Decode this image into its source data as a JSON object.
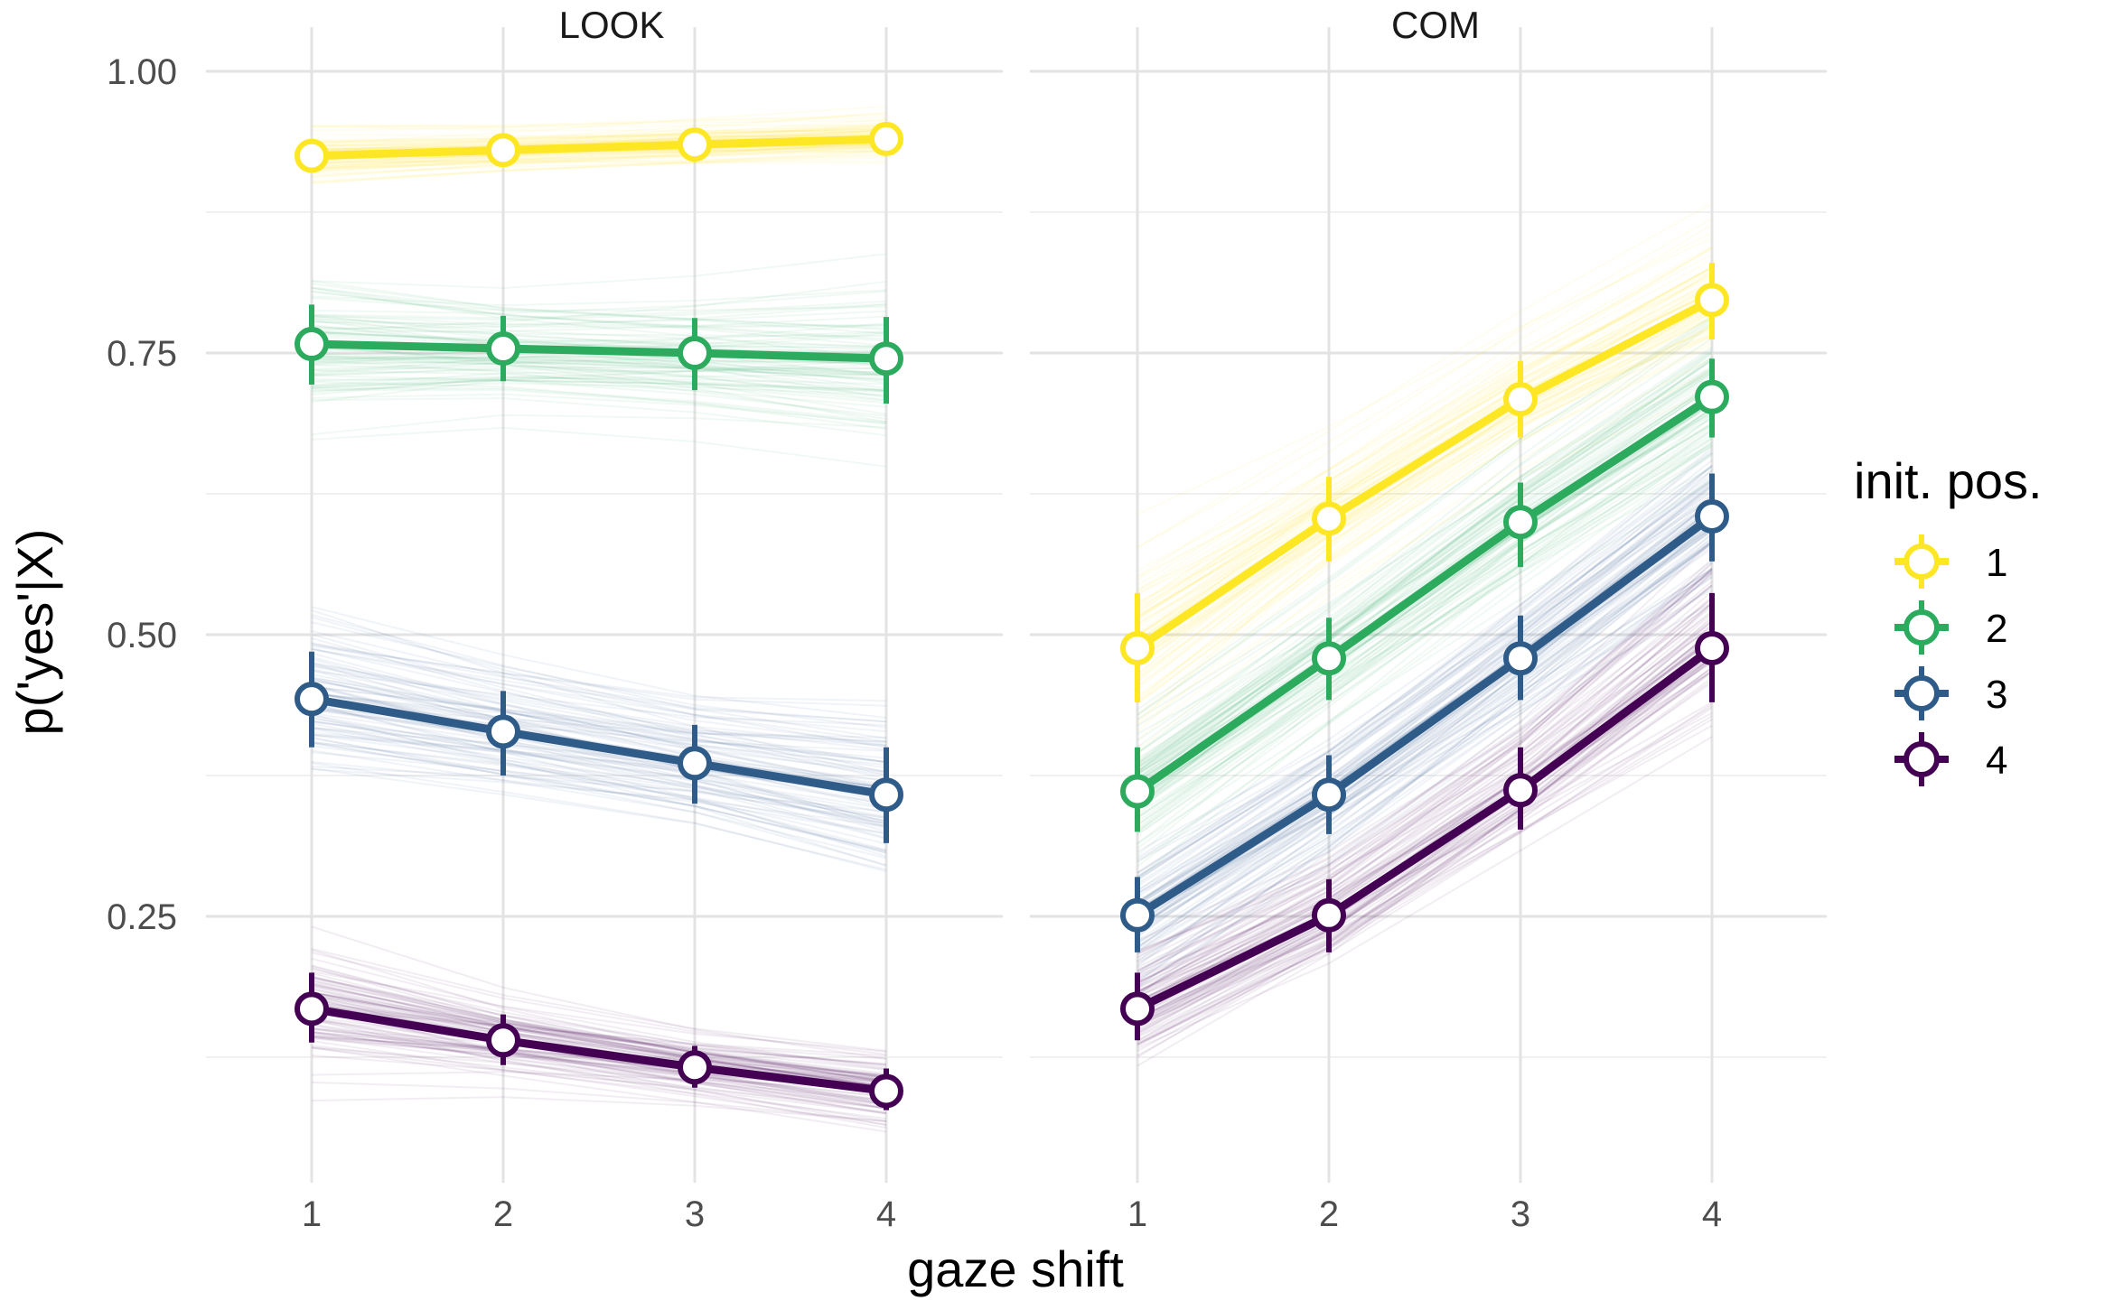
{
  "chart_data": {
    "type": "line",
    "title": "",
    "xlabel": "gaze shift",
    "ylabel": "p('yes'|X)",
    "x": [
      1,
      2,
      3,
      4
    ],
    "x_ticks": [
      "1",
      "2",
      "3",
      "4"
    ],
    "ylim": [
      0.05,
      1.0
    ],
    "y_ticks": [
      0.25,
      0.5,
      0.75,
      1.0
    ],
    "y_tick_labels": [
      "0.25",
      "0.50",
      "0.75",
      "1.00"
    ],
    "grid": true,
    "legend": {
      "title": "init. pos.",
      "position": "right",
      "entries": [
        "1",
        "2",
        "3",
        "4"
      ]
    },
    "colors": {
      "1": "#FDE725",
      "2": "#2CAA5E",
      "3": "#2E5B88",
      "4": "#440154"
    },
    "facets": [
      {
        "title": "LOOK",
        "series": [
          {
            "name": "1",
            "values": [
              0.925,
              0.93,
              0.935,
              0.94
            ],
            "lower": [
              0.912,
              0.918,
              0.922,
              0.926
            ],
            "upper": [
              0.938,
              0.942,
              0.948,
              0.952
            ]
          },
          {
            "name": "2",
            "values": [
              0.758,
              0.754,
              0.75,
              0.745
            ],
            "lower": [
              0.722,
              0.725,
              0.717,
              0.705
            ],
            "upper": [
              0.793,
              0.783,
              0.781,
              0.782
            ]
          },
          {
            "name": "3",
            "values": [
              0.443,
              0.414,
              0.386,
              0.358
            ],
            "lower": [
              0.4,
              0.375,
              0.35,
              0.315
            ],
            "upper": [
              0.485,
              0.45,
              0.42,
              0.4
            ]
          },
          {
            "name": "4",
            "values": [
              0.168,
              0.14,
              0.116,
              0.095
            ],
            "lower": [
              0.138,
              0.118,
              0.098,
              0.078
            ],
            "upper": [
              0.2,
              0.163,
              0.135,
              0.115
            ]
          }
        ]
      },
      {
        "title": "COM",
        "series": [
          {
            "name": "1",
            "values": [
              0.488,
              0.603,
              0.709,
              0.797
            ],
            "lower": [
              0.44,
              0.565,
              0.675,
              0.762
            ],
            "upper": [
              0.537,
              0.64,
              0.743,
              0.83
            ]
          },
          {
            "name": "2",
            "values": [
              0.361,
              0.479,
              0.6,
              0.711
            ],
            "lower": [
              0.325,
              0.442,
              0.56,
              0.675
            ],
            "upper": [
              0.4,
              0.515,
              0.635,
              0.745
            ]
          },
          {
            "name": "3",
            "values": [
              0.251,
              0.358,
              0.479,
              0.605
            ],
            "lower": [
              0.218,
              0.323,
              0.442,
              0.565
            ],
            "upper": [
              0.285,
              0.393,
              0.517,
              0.643
            ]
          },
          {
            "name": "4",
            "values": [
              0.168,
              0.251,
              0.362,
              0.488
            ],
            "lower": [
              0.14,
              0.218,
              0.327,
              0.44
            ],
            "upper": [
              0.2,
              0.283,
              0.4,
              0.537
            ]
          }
        ]
      }
    ]
  }
}
